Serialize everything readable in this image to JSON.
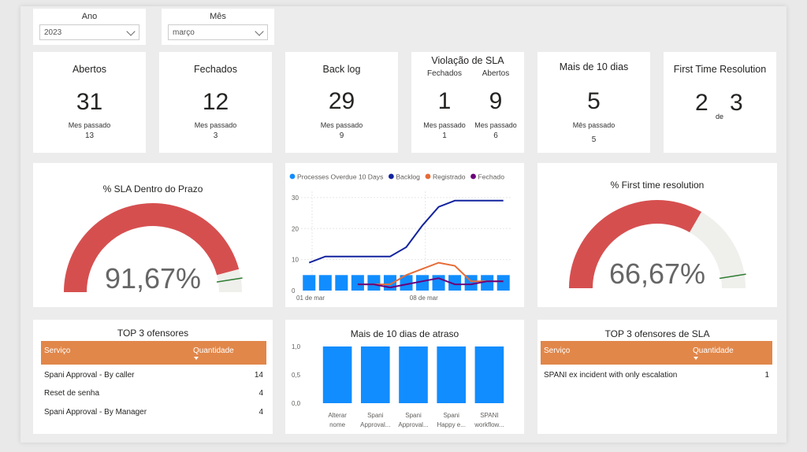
{
  "filters": {
    "ano": {
      "label": "Ano",
      "value": "2023"
    },
    "mes": {
      "label": "Mês",
      "value": "março"
    }
  },
  "kpis": {
    "abertos": {
      "title": "Abertos",
      "value": "31",
      "sub_label": "Mes passado",
      "sub_value": "13"
    },
    "fechados": {
      "title": "Fechados",
      "value": "12",
      "sub_label": "Mes passado",
      "sub_value": "3"
    },
    "backlog": {
      "title": "Back log",
      "value": "29",
      "sub_label": "Mes passado",
      "sub_value": "9"
    },
    "violacao": {
      "title": "Violação de SLA",
      "fechados": {
        "label": "Fechados",
        "value": "1",
        "sub_label": "Mes passado",
        "sub_value": "1"
      },
      "abertos": {
        "label": "Abertos",
        "value": "9",
        "sub_label": "Mes passado",
        "sub_value": "6"
      }
    },
    "mais10": {
      "title": "Mais de 10 dias",
      "value": "5",
      "sub_label": "Mês passado",
      "sub_value": "5"
    },
    "ftr": {
      "title": "First Time Resolution",
      "value": "2",
      "de": "de",
      "total": "3"
    }
  },
  "colors": {
    "gauge_fill": "#d64f4f",
    "gauge_track": "#efefec",
    "target": "#2e7d32",
    "bar_blue": "#118dff",
    "backlog_line": "#12239e",
    "registrado_line": "#e66c37",
    "fechado_line": "#6b007b",
    "table_header": "#e1874a"
  },
  "chart_data": [
    {
      "type": "gauge",
      "title": "% SLA Dentro do Prazo",
      "value_label": "91,67%",
      "value": 91.67,
      "min": 0,
      "max": 100,
      "target": 95
    },
    {
      "type": "line",
      "legend": [
        {
          "name": "Processes Overdue 10 Days",
          "color": "#118dff",
          "kind": "bar"
        },
        {
          "name": "Backlog",
          "color": "#12239e",
          "kind": "line"
        },
        {
          "name": "Registrado",
          "color": "#e66c37",
          "kind": "line"
        },
        {
          "name": "Fechado",
          "color": "#6b007b",
          "kind": "line"
        }
      ],
      "x_tick_labels": [
        "01 de mar",
        "08 de mar"
      ],
      "y_ticks": [
        "0",
        "10",
        "20",
        "30"
      ],
      "ylim": [
        0,
        32
      ],
      "days": [
        "01/03",
        "02/03",
        "03/03",
        "04/03",
        "05/03",
        "06/03",
        "07/03",
        "08/03",
        "09/03",
        "10/03",
        "11/03",
        "12/03",
        "13/03"
      ],
      "series": [
        {
          "name": "Processes Overdue 10 Days",
          "type": "bar",
          "values": [
            5,
            5,
            5,
            5,
            5,
            5,
            5,
            5,
            5,
            5,
            5,
            5,
            5
          ]
        },
        {
          "name": "Backlog",
          "type": "line",
          "values": [
            9,
            11,
            11,
            11,
            11,
            11,
            14,
            21,
            27,
            29,
            29,
            29,
            29
          ]
        },
        {
          "name": "Registrado",
          "type": "line",
          "values": [
            null,
            null,
            null,
            2,
            2,
            2,
            5,
            7,
            9,
            8,
            3,
            3,
            3
          ]
        },
        {
          "name": "Fechado",
          "type": "line",
          "values": [
            null,
            null,
            null,
            2,
            2,
            1,
            2,
            3,
            4,
            2,
            2,
            3,
            3
          ]
        }
      ]
    },
    {
      "type": "gauge",
      "title": "% First time resolution",
      "value_label": "66,67%",
      "value": 66.67,
      "min": 0,
      "max": 100,
      "target": 95
    },
    {
      "type": "bar",
      "title": "Mais de 10 dias de atraso",
      "categories": [
        "Alterar nome",
        "Spani Approval...",
        "Spani Approval...",
        "Spani Happy e...",
        "SPANI workflow..."
      ],
      "category_lines": [
        [
          "Alterar",
          "nome"
        ],
        [
          "Spani",
          "Approval..."
        ],
        [
          "Spani",
          "Approval..."
        ],
        [
          "Spani",
          "Happy e..."
        ],
        [
          "SPANI",
          "workflow..."
        ]
      ],
      "values": [
        1,
        1,
        1,
        1,
        1
      ],
      "y_ticks": [
        "0,0",
        "0,5",
        "1,0"
      ],
      "ylim": [
        0,
        1
      ]
    }
  ],
  "top3": {
    "title": "TOP 3 ofensores",
    "col_servico": "Serviço",
    "col_qtd": "Quantidade",
    "rows": [
      {
        "name": "Spani Approval - By caller",
        "qty": "14"
      },
      {
        "name": "Reset de senha",
        "qty": "4"
      },
      {
        "name": "Spani Approval - By Manager",
        "qty": "4"
      }
    ]
  },
  "top3sla": {
    "title": "TOP 3 ofensores de SLA",
    "col_servico": "Serviço",
    "col_qtd": "Quantidade",
    "rows": [
      {
        "name": "SPANI ex incident with only escalation",
        "qty": "1"
      }
    ]
  }
}
